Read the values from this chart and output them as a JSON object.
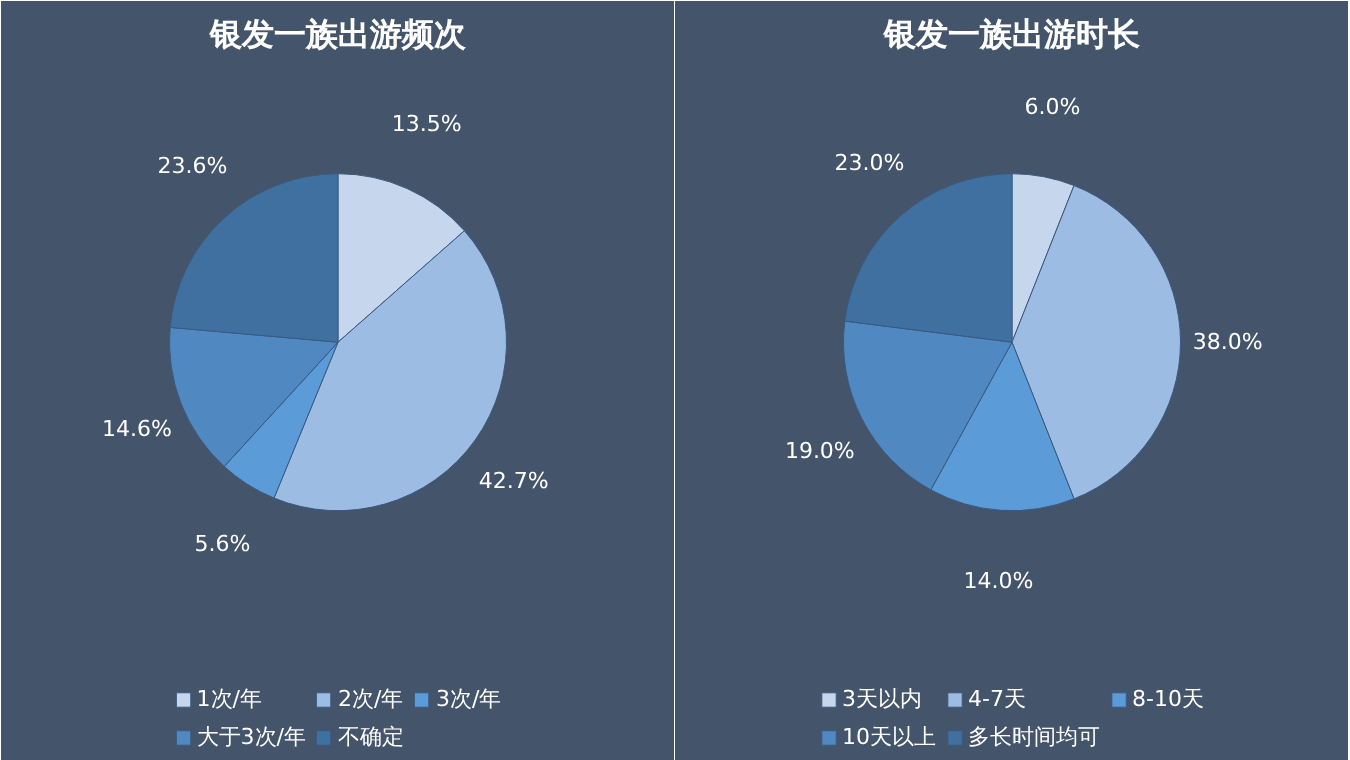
{
  "chart_data": [
    {
      "type": "pie",
      "title": "银发一族出游频次",
      "categories": [
        "1次/年",
        "2次/年",
        "3次/年",
        "大于3次/年",
        "不确定"
      ],
      "values": [
        13.5,
        42.7,
        5.6,
        14.6,
        23.6
      ],
      "value_labels": [
        "13.5%",
        "42.7%",
        "5.6%",
        "14.6%",
        "23.6%"
      ],
      "colors": [
        "#c6d6ec",
        "#9dbce3",
        "#5b9bd8",
        "#5089c2",
        "#40709f"
      ],
      "legend": "bottom"
    },
    {
      "type": "pie",
      "title": "银发一族出游时长",
      "categories": [
        "3天以内",
        "4-7天",
        "8-10天",
        "10天以上",
        "多长时间均可"
      ],
      "values": [
        6.0,
        38.0,
        14.0,
        19.0,
        23.0
      ],
      "value_labels": [
        "6.0%",
        "38.0%",
        "14.0%",
        "19.0%",
        "23.0%"
      ],
      "colors": [
        "#c6d6ec",
        "#9dbce3",
        "#5b9bd8",
        "#5089c2",
        "#40709f"
      ],
      "legend": "bottom"
    }
  ]
}
